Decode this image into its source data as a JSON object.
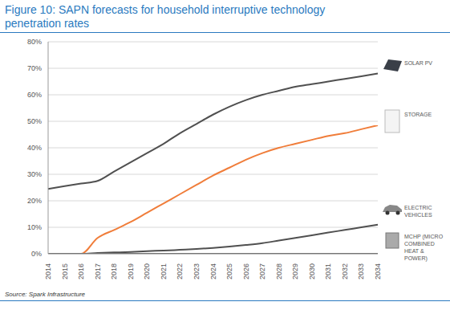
{
  "chart_data": {
    "type": "line",
    "title": "Figure 10: SAPN forecasts for household interruptive technology penetration rates",
    "source": "Source: Spark Infrastructure",
    "categories": [
      "2014",
      "2015",
      "2016",
      "2017",
      "2018",
      "2019",
      "2020",
      "2021",
      "2022",
      "2023",
      "2024",
      "2025",
      "2026",
      "2027",
      "2028",
      "2029",
      "2030",
      "2031",
      "2032",
      "2033",
      "2034"
    ],
    "series": [
      {
        "name": "SOLAR PV",
        "color": "#505050",
        "values": [
          24.5,
          25.5,
          26.5,
          27.5,
          31,
          34.5,
          38,
          41.5,
          45.5,
          49,
          52.5,
          55.5,
          58,
          60,
          61.5,
          63,
          64,
          65,
          66,
          67,
          68
        ]
      },
      {
        "name": "STORAGE",
        "color": "#f07d3a",
        "values": [
          0,
          0,
          0,
          6,
          9,
          12,
          15.5,
          19,
          22.5,
          26,
          29.5,
          32.5,
          35.5,
          38,
          40,
          41.5,
          43,
          44.5,
          45.5,
          47,
          48.5
        ]
      },
      {
        "name": "ELECTRIC VEHICLES",
        "color": "#505050",
        "values": [
          0,
          0,
          0,
          0.3,
          0.5,
          0.7,
          1,
          1.2,
          1.5,
          1.8,
          2.2,
          2.7,
          3.3,
          4,
          5,
          6,
          7,
          8,
          9,
          10,
          11
        ]
      },
      {
        "name": "MCHP (MICRO COMBINED HEAT & POWER)",
        "color": "#505050",
        "values": [
          0,
          0,
          0,
          0,
          0,
          0,
          0,
          0,
          0,
          0,
          0,
          0,
          0,
          0,
          0,
          0,
          0,
          0,
          0,
          0,
          0
        ]
      }
    ],
    "ylim": [
      0,
      80
    ],
    "yticks": [
      {
        "value": 0,
        "label": "0%"
      },
      {
        "value": 10,
        "label": "10%"
      },
      {
        "value": 20,
        "label": "20%"
      },
      {
        "value": 30,
        "label": "30%"
      },
      {
        "value": 40,
        "label": "40%"
      },
      {
        "value": 50,
        "label": "50%"
      },
      {
        "value": 60,
        "label": "60%"
      },
      {
        "value": 70,
        "label": "70%"
      },
      {
        "value": 80,
        "label": "80%"
      }
    ],
    "grid": true
  }
}
